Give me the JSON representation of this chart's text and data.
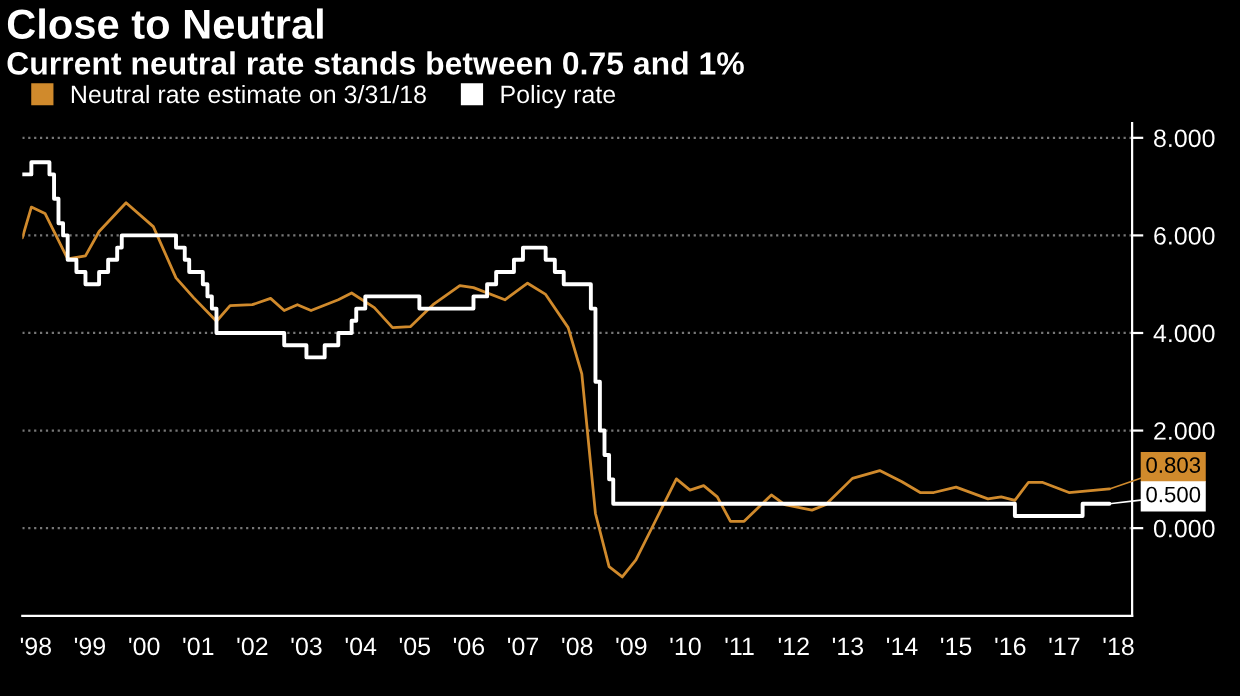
{
  "chart_data": {
    "type": "line",
    "title": "Close to Neutral",
    "subtitle": "Current neutral rate stands between 0.75 and 1%",
    "x": [
      "1998-04",
      "1998-06",
      "1998-09",
      "1999-02",
      "1999-06",
      "1999-09",
      "2000-03",
      "2000-09",
      "2001-02",
      "2001-06",
      "2001-11",
      "2002-02",
      "2002-07",
      "2002-11",
      "2003-02",
      "2003-05",
      "2003-08",
      "2004-02",
      "2004-05",
      "2004-10",
      "2005-02",
      "2005-06",
      "2005-11",
      "2006-05",
      "2006-08",
      "2007-03",
      "2007-08",
      "2007-12",
      "2008-05",
      "2008-08",
      "2008-11",
      "2009-02",
      "2009-05",
      "2009-08",
      "2009-12",
      "2010-05",
      "2010-08",
      "2010-11",
      "2011-02",
      "2011-05",
      "2011-08",
      "2012-02",
      "2012-05",
      "2012-11",
      "2013-02",
      "2013-08",
      "2014-02",
      "2014-07",
      "2014-11",
      "2015-02",
      "2015-07",
      "2016-02",
      "2016-05",
      "2016-08",
      "2016-11",
      "2017-02",
      "2017-08",
      "2018-05"
    ],
    "series": [
      {
        "name": "Neutral rate estimate on 3/31/18",
        "color": "#d08a2c",
        "values": [
          5.95,
          6.58,
          6.45,
          5.52,
          5.58,
          6.08,
          6.67,
          6.18,
          5.13,
          4.72,
          4.24,
          4.56,
          4.58,
          4.71,
          4.46,
          4.58,
          4.46,
          4.68,
          4.82,
          4.52,
          4.11,
          4.13,
          4.58,
          4.97,
          4.93,
          4.68,
          5.02,
          4.79,
          4.11,
          3.16,
          0.3,
          -0.79,
          -1.0,
          -0.65,
          0.09,
          1.01,
          0.78,
          0.87,
          0.64,
          0.14,
          0.14,
          0.68,
          0.48,
          0.37,
          0.48,
          1.02,
          1.18,
          0.95,
          0.73,
          0.73,
          0.84,
          0.6,
          0.64,
          0.57,
          0.94,
          0.94,
          0.73,
          0.803
        ]
      },
      {
        "name": "Policy rate",
        "color": "#ffffff",
        "type": "step",
        "x": [
          "1998-04",
          "1998-06",
          "1998-10",
          "1998-11",
          "1998-12",
          "1999-01",
          "1999-02",
          "1999-04",
          "1999-06",
          "1999-09",
          "1999-11",
          "2000-01",
          "2000-02",
          "2001-02",
          "2001-04",
          "2001-05",
          "2001-08",
          "2001-09",
          "2001-10",
          "2001-11",
          "2003-02",
          "2003-07",
          "2003-11",
          "2004-02",
          "2004-05",
          "2004-06",
          "2004-08",
          "2005-08",
          "2006-08",
          "2006-11",
          "2007-01",
          "2007-05",
          "2007-07",
          "2007-12",
          "2008-02",
          "2008-04",
          "2008-10",
          "2008-11",
          "2008-12",
          "2009-01",
          "2009-02",
          "2009-03",
          "2016-08",
          "2017-11",
          "2018-05"
        ],
        "values": [
          7.25,
          7.5,
          7.25,
          6.75,
          6.25,
          6.0,
          5.5,
          5.25,
          5.0,
          5.25,
          5.5,
          5.75,
          6.0,
          5.75,
          5.5,
          5.25,
          5.0,
          4.75,
          4.5,
          4.0,
          3.75,
          3.5,
          3.75,
          4.0,
          4.25,
          4.5,
          4.75,
          4.5,
          4.75,
          5.0,
          5.25,
          5.5,
          5.75,
          5.5,
          5.25,
          5.0,
          4.5,
          3.0,
          2.0,
          1.5,
          1.0,
          0.5,
          0.25,
          0.5,
          0.5
        ]
      }
    ],
    "xlim": [
      "1998-04",
      "2018-10"
    ],
    "ylim": [
      -1.8,
      8.3
    ],
    "xticks": [
      {
        "value": "1998-07",
        "label": "'98"
      },
      {
        "value": "1999-07",
        "label": "'99"
      },
      {
        "value": "2000-07",
        "label": "'00"
      },
      {
        "value": "2001-07",
        "label": "'01"
      },
      {
        "value": "2002-07",
        "label": "'02"
      },
      {
        "value": "2003-07",
        "label": "'03"
      },
      {
        "value": "2004-07",
        "label": "'04"
      },
      {
        "value": "2005-07",
        "label": "'05"
      },
      {
        "value": "2006-07",
        "label": "'06"
      },
      {
        "value": "2007-07",
        "label": "'07"
      },
      {
        "value": "2008-07",
        "label": "'08"
      },
      {
        "value": "2009-07",
        "label": "'09"
      },
      {
        "value": "2010-07",
        "label": "'10"
      },
      {
        "value": "2011-07",
        "label": "'11"
      },
      {
        "value": "2012-07",
        "label": "'12"
      },
      {
        "value": "2013-07",
        "label": "'13"
      },
      {
        "value": "2014-07",
        "label": "'14"
      },
      {
        "value": "2015-07",
        "label": "'15"
      },
      {
        "value": "2016-07",
        "label": "'16"
      },
      {
        "value": "2017-07",
        "label": "'17"
      },
      {
        "value": "2018-07",
        "label": "'18"
      }
    ],
    "yticks": [
      {
        "value": 0,
        "label": "0.000"
      },
      {
        "value": 2,
        "label": "2.000"
      },
      {
        "value": 4,
        "label": "4.000"
      },
      {
        "value": 6,
        "label": "6.000"
      },
      {
        "value": 8,
        "label": "8.000"
      }
    ],
    "annotations": [
      {
        "text": "0.803",
        "x": "2018-05",
        "y": 0.803
      },
      {
        "text": "0.500",
        "x": "2018-05",
        "y": 0.5
      }
    ],
    "grid": "y",
    "legend": "top left"
  }
}
